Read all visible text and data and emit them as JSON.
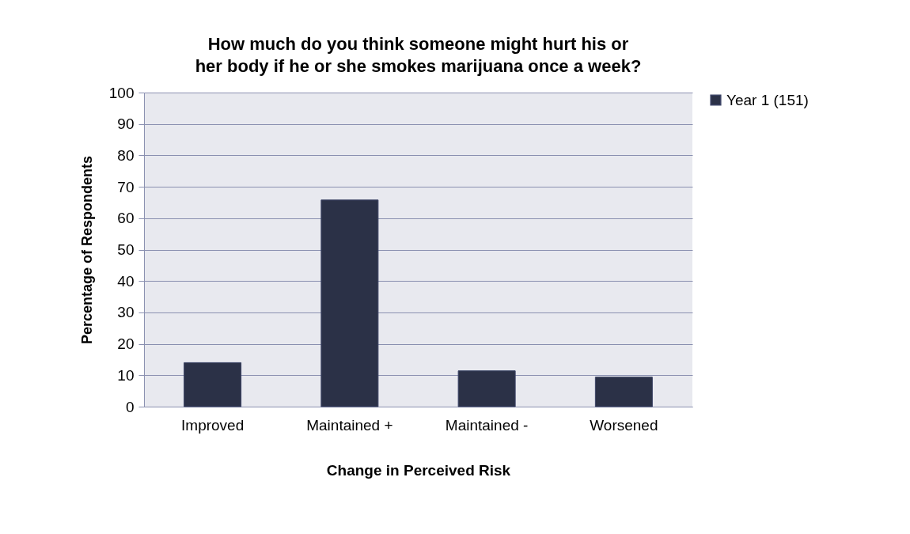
{
  "chart_data": {
    "type": "bar",
    "title": "How much do you think someone might hurt his or her body if he or she smokes marijuana once a week?",
    "xlabel": "Change in Perceived Risk",
    "ylabel": "Percentage of Respondents",
    "categories": [
      "Improved",
      "Maintained +",
      "Maintained -",
      "Worsened"
    ],
    "series": [
      {
        "name": "Year 1 (151)",
        "color": "#2b3147",
        "values": [
          14.0,
          65.8,
          11.4,
          9.4
        ]
      }
    ],
    "ylim": [
      0,
      100
    ],
    "yticks": [
      0,
      10,
      20,
      30,
      40,
      50,
      60,
      70,
      80,
      90,
      100
    ],
    "grid": "y",
    "legend": "right"
  }
}
